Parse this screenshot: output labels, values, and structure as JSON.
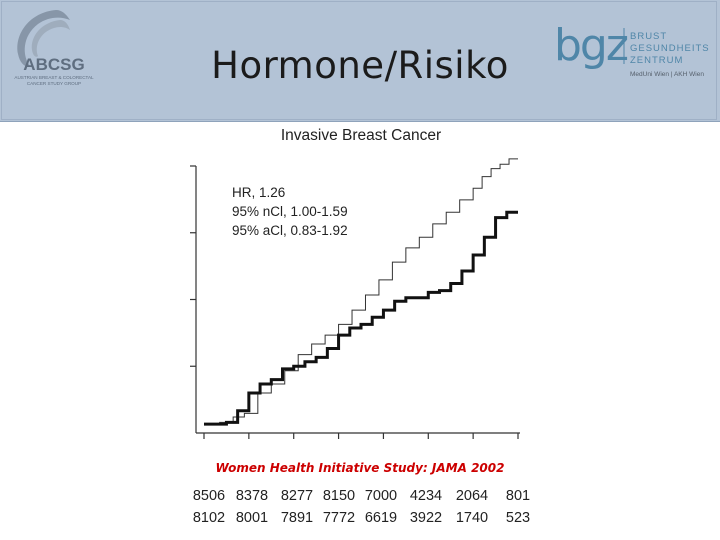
{
  "slide": {
    "title": "Hormone/Risiko"
  },
  "logos": {
    "abcsg": {
      "name": "ABCSG",
      "line1": "AUSTRIAN BREAST & COLORECTAL",
      "line2": "CANCER STUDY GROUP"
    },
    "bgz": {
      "mark": "bgz",
      "line1": "BRUST",
      "line2": "GESUNDHEITS",
      "line3": "ZENTRUM",
      "line4": "MedUni Wien | AKH Wien"
    }
  },
  "colors": {
    "header_bg": "#b3c3d6",
    "title": "#1b1b1b",
    "source_note": "#cc0000",
    "bgz_blue": "#4f86a8",
    "abcsg_gray": "#6f7f90"
  },
  "chart_data": {
    "type": "line",
    "title": "Invasive Breast Cancer",
    "annotations": [
      "HR, 1.26",
      "95% nCl, 1.00-1.59",
      "95% aCl, 0.83-1.92"
    ],
    "x_ticks": 8,
    "y_ticks": 4,
    "xlim": [
      0,
      7
    ],
    "ylim": [
      0,
      3
    ],
    "grid": false,
    "legend": "none",
    "series": [
      {
        "style": "thin",
        "x": [
          0,
          0.35,
          0.65,
          0.9,
          1.2,
          1.5,
          1.8,
          2.1,
          2.4,
          2.7,
          3.0,
          3.3,
          3.6,
          3.9,
          4.2,
          4.5,
          4.8,
          5.1,
          5.4,
          5.7,
          6.0,
          6.2,
          6.4,
          6.6,
          6.8,
          7.0
        ],
        "y": [
          0.1,
          0.12,
          0.18,
          0.22,
          0.45,
          0.55,
          0.7,
          0.88,
          1.0,
          1.1,
          1.22,
          1.38,
          1.55,
          1.72,
          1.92,
          2.08,
          2.2,
          2.35,
          2.48,
          2.62,
          2.75,
          2.88,
          2.97,
          3.02,
          3.08,
          3.08
        ]
      },
      {
        "style": "thick",
        "x": [
          0,
          0.5,
          0.75,
          1.0,
          1.25,
          1.5,
          1.75,
          2.0,
          2.25,
          2.5,
          2.75,
          3.0,
          3.25,
          3.5,
          3.75,
          4.0,
          4.25,
          4.5,
          4.75,
          5.0,
          5.25,
          5.5,
          5.75,
          6.0,
          6.25,
          6.5,
          6.75,
          7.0
        ],
        "y": [
          0.1,
          0.12,
          0.25,
          0.45,
          0.55,
          0.6,
          0.72,
          0.75,
          0.8,
          0.85,
          0.95,
          1.1,
          1.18,
          1.22,
          1.3,
          1.38,
          1.48,
          1.52,
          1.52,
          1.58,
          1.6,
          1.68,
          1.82,
          2.0,
          2.2,
          2.42,
          2.48,
          2.48
        ]
      }
    ]
  },
  "source_note": "Women Health Initiative Study: JAMA 2002",
  "risk_table": {
    "rows": [
      [
        "8506",
        "8378",
        "8277",
        "8150",
        "7000",
        "4234",
        "2064",
        "801"
      ],
      [
        "8102",
        "8001",
        "7891",
        "7772",
        "6619",
        "3922",
        "1740",
        "523"
      ]
    ]
  }
}
